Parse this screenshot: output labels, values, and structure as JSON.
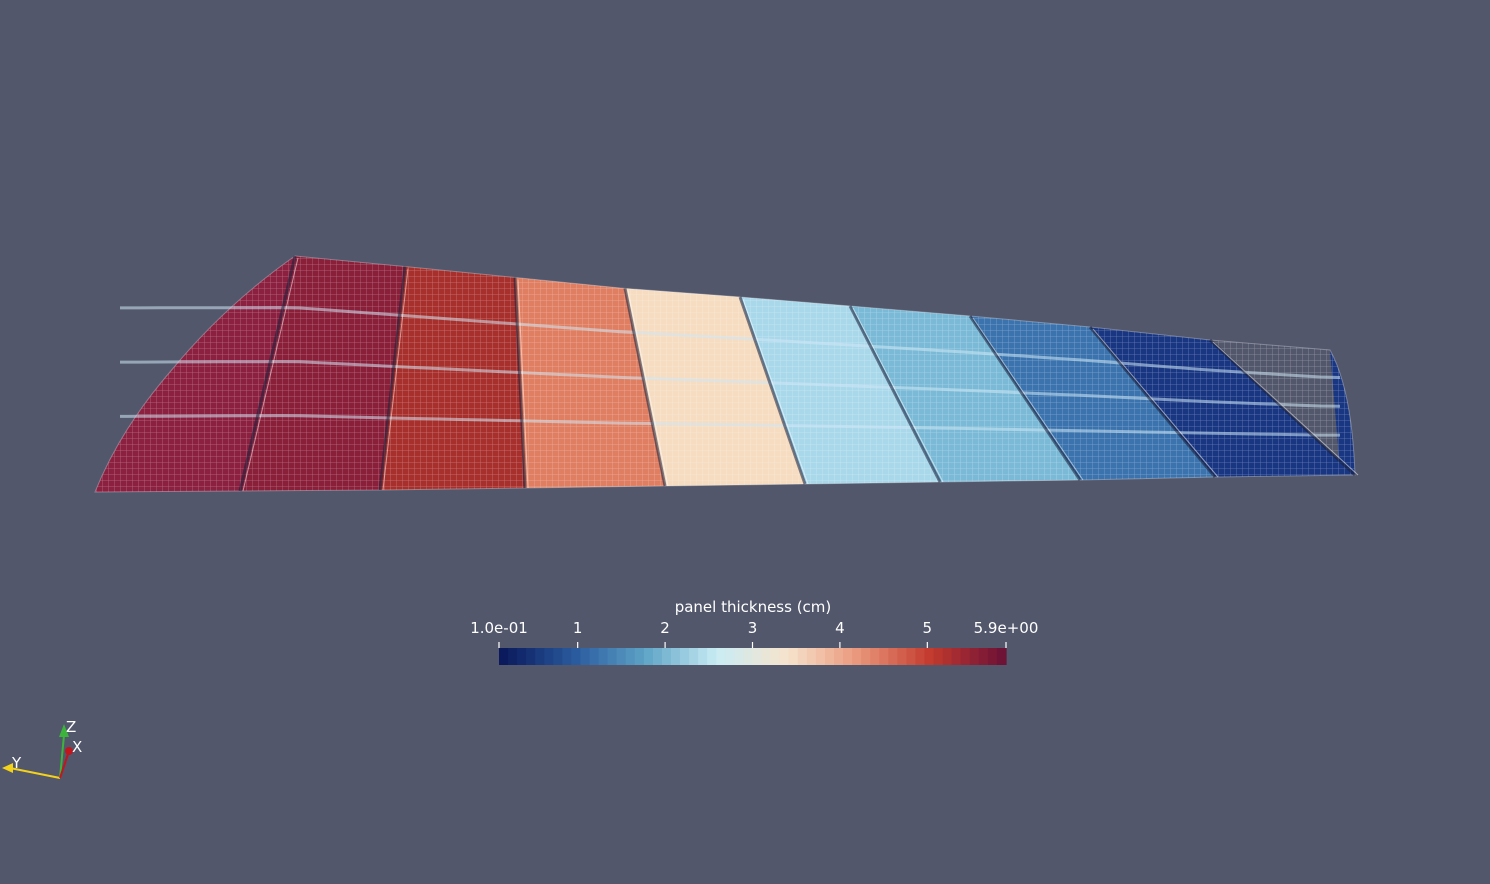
{
  "colorbar": {
    "title": "panel thickness (cm)",
    "ticks": [
      {
        "label": "1.0e-01",
        "value": 0.1
      },
      {
        "label": "1",
        "value": 1
      },
      {
        "label": "2",
        "value": 2
      },
      {
        "label": "3",
        "value": 3
      },
      {
        "label": "4",
        "value": 4
      },
      {
        "label": "5",
        "value": 5
      },
      {
        "label": "5.9e+00",
        "value": 5.9
      }
    ],
    "range": [
      0.1,
      5.9
    ],
    "colormap": [
      "#0a1a5c",
      "#2a5a9e",
      "#5fa4c7",
      "#c9ecf4",
      "#f7e3cc",
      "#e9957a",
      "#c23a2e",
      "#6e1236"
    ]
  },
  "wing": {
    "section_colors": [
      "#8c2040",
      "#8a1f3a",
      "#a8302c",
      "#e07e61",
      "#f6dcc0",
      "#a8d8ea",
      "#7bbad6",
      "#3a73ad",
      "#183682"
    ]
  },
  "orientation_axes": {
    "x_label": "X",
    "y_label": "Y",
    "z_label": "Z",
    "x_color": "#c0171e",
    "y_color": "#f2d21b",
    "z_color": "#3cb43c"
  },
  "background_color": "#52576c"
}
